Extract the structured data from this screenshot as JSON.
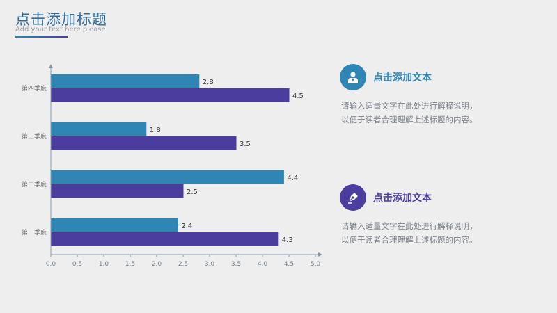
{
  "header": {
    "title": "点击添加标题",
    "subtitle": "Add your text here please"
  },
  "colors": {
    "accent_blue": "#2f86b4",
    "accent_purple": "#4b3d9d",
    "title_color": "#2e6d9e"
  },
  "chart_data": {
    "type": "bar",
    "orientation": "horizontal",
    "categories": [
      "第一季度",
      "第二季度",
      "第三季度",
      "第四季度"
    ],
    "series": [
      {
        "values": [
          2.4,
          4.4,
          1.8,
          2.8
        ]
      },
      {
        "values": [
          4.3,
          2.5,
          3.5,
          4.5
        ]
      }
    ],
    "xlim": [
      0,
      5
    ],
    "x_ticks": [
      "0.0",
      "0.5",
      "1.0",
      "1.5",
      "2.0",
      "2.5",
      "3.0",
      "3.5",
      "4.0",
      "4.5",
      "5.0"
    ],
    "grid": false,
    "legend": "none"
  },
  "info_blocks": [
    {
      "icon": "person-icon",
      "heading": "点击添加文本",
      "line1": "请输入适量文字在此处进行解释说明，",
      "line2": "以便于读者合理理解上述标题的内容。"
    },
    {
      "icon": "pen-nib-icon",
      "heading": "点击添加文本",
      "line1": "请输入适量文字在此处进行解释说明，",
      "line2": "以便于读者合理理解上述标题的内容。"
    }
  ]
}
